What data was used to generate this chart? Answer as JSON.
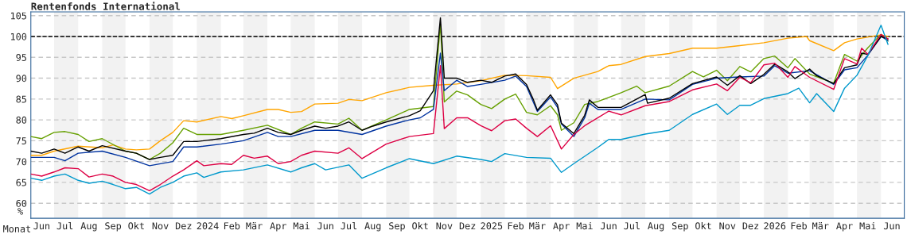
{
  "chart_data": {
    "type": "line",
    "title": "Rentenfonds International",
    "xlabel": "Monat",
    "ylabel": "%",
    "xlim": [
      "2023-06-01",
      "2026-07-01"
    ],
    "ylim": [
      56.4,
      105.9
    ],
    "yticks": [
      60,
      65,
      70,
      75,
      80,
      85,
      90,
      95,
      100,
      105
    ],
    "xticks": [
      {
        "value": "2023-06-15",
        "label": "Jun"
      },
      {
        "value": "2023-07-15",
        "label": "Jul"
      },
      {
        "value": "2023-08-15",
        "label": "Aug"
      },
      {
        "value": "2023-09-15",
        "label": "Sep"
      },
      {
        "value": "2023-10-15",
        "label": "Okt"
      },
      {
        "value": "2023-11-15",
        "label": "Nov"
      },
      {
        "value": "2023-12-15",
        "label": "Dez"
      },
      {
        "value": "2024-01-15",
        "label": "2024"
      },
      {
        "value": "2024-02-15",
        "label": "Feb"
      },
      {
        "value": "2024-03-15",
        "label": "Mär"
      },
      {
        "value": "2024-04-15",
        "label": "Apr"
      },
      {
        "value": "2024-05-15",
        "label": "Mai"
      },
      {
        "value": "2024-06-15",
        "label": "Jun"
      },
      {
        "value": "2024-07-15",
        "label": "Jul"
      },
      {
        "value": "2024-08-15",
        "label": "Aug"
      },
      {
        "value": "2024-09-15",
        "label": "Sep"
      },
      {
        "value": "2024-10-15",
        "label": "Okt"
      },
      {
        "value": "2024-11-15",
        "label": "Nov"
      },
      {
        "value": "2024-12-15",
        "label": "Dez"
      },
      {
        "value": "2025-01-15",
        "label": "2025"
      },
      {
        "value": "2025-02-15",
        "label": "Feb"
      },
      {
        "value": "2025-03-15",
        "label": "Mär"
      },
      {
        "value": "2025-04-15",
        "label": "Apr"
      },
      {
        "value": "2025-05-15",
        "label": "Mai"
      },
      {
        "value": "2025-06-15",
        "label": "Jun"
      },
      {
        "value": "2025-07-15",
        "label": "Jul"
      },
      {
        "value": "2025-08-15",
        "label": "Aug"
      },
      {
        "value": "2025-09-15",
        "label": "Sep"
      },
      {
        "value": "2025-10-15",
        "label": "Okt"
      },
      {
        "value": "2025-11-15",
        "label": "Nov"
      },
      {
        "value": "2025-12-15",
        "label": "Dez"
      },
      {
        "value": "2026-01-15",
        "label": "2026"
      },
      {
        "value": "2026-02-15",
        "label": "Feb"
      },
      {
        "value": "2026-03-15",
        "label": "Mär"
      },
      {
        "value": "2026-04-15",
        "label": "Apr"
      },
      {
        "value": "2026-05-15",
        "label": "Mai"
      },
      {
        "value": "2026-06-15",
        "label": "Jun"
      }
    ],
    "grid": "y",
    "legend": false,
    "marker": "none",
    "line_style": "solid",
    "ref_lines": [
      {
        "axis": "y",
        "value": 100,
        "color": "#000000",
        "line_style": "dashed"
      }
    ],
    "bands": [
      {
        "axis": "x",
        "from": "2023-07-01",
        "to": "2023-08-01",
        "color": "#f2f2f2"
      },
      {
        "axis": "x",
        "from": "2023-09-01",
        "to": "2023-10-01",
        "color": "#f2f2f2"
      },
      {
        "axis": "x",
        "from": "2023-11-01",
        "to": "2023-12-01",
        "color": "#f2f2f2"
      },
      {
        "axis": "x",
        "from": "2024-01-01",
        "to": "2024-02-01",
        "color": "#f2f2f2"
      },
      {
        "axis": "x",
        "from": "2024-03-01",
        "to": "2024-04-01",
        "color": "#f2f2f2"
      },
      {
        "axis": "x",
        "from": "2024-05-01",
        "to": "2024-06-01",
        "color": "#f2f2f2"
      },
      {
        "axis": "x",
        "from": "2024-07-01",
        "to": "2024-08-01",
        "color": "#f2f2f2"
      },
      {
        "axis": "x",
        "from": "2024-09-01",
        "to": "2024-10-01",
        "color": "#f2f2f2"
      },
      {
        "axis": "x",
        "from": "2024-11-01",
        "to": "2024-12-01",
        "color": "#f2f2f2"
      },
      {
        "axis": "x",
        "from": "2025-01-01",
        "to": "2025-02-01",
        "color": "#f2f2f2"
      },
      {
        "axis": "x",
        "from": "2025-03-01",
        "to": "2025-04-01",
        "color": "#f2f2f2"
      },
      {
        "axis": "x",
        "from": "2025-05-01",
        "to": "2025-06-01",
        "color": "#f2f2f2"
      },
      {
        "axis": "x",
        "from": "2025-07-01",
        "to": "2025-08-01",
        "color": "#f2f2f2"
      },
      {
        "axis": "x",
        "from": "2025-09-01",
        "to": "2025-10-01",
        "color": "#f2f2f2"
      },
      {
        "axis": "x",
        "from": "2025-11-01",
        "to": "2025-12-01",
        "color": "#f2f2f2"
      },
      {
        "axis": "x",
        "from": "2026-01-01",
        "to": "2026-02-01",
        "color": "#f2f2f2"
      },
      {
        "axis": "x",
        "from": "2026-03-01",
        "to": "2026-04-01",
        "color": "#f2f2f2"
      },
      {
        "axis": "x",
        "from": "2026-05-01",
        "to": "2026-06-01",
        "color": "#f2f2f2"
      }
    ],
    "series": [
      {
        "color": "#ffa500",
        "x": [
          "2023-06-01",
          "2023-06-15",
          "2023-07-01",
          "2023-08-01",
          "2023-09-01",
          "2023-09-15",
          "2023-10-01",
          "2023-10-15",
          "2023-11-01",
          "2023-11-15",
          "2023-12-01",
          "2023-12-15",
          "2024-01-01",
          "2024-02-01",
          "2024-02-15",
          "2024-03-01",
          "2024-04-01",
          "2024-04-15",
          "2024-05-01",
          "2024-05-15",
          "2024-06-01",
          "2024-07-01",
          "2024-07-15",
          "2024-08-01",
          "2024-09-01",
          "2024-10-01",
          "2024-11-01",
          "2024-12-01",
          "2025-01-01",
          "2025-02-01",
          "2025-03-01",
          "2025-04-01",
          "2025-04-10",
          "2025-05-01",
          "2025-06-01",
          "2025-06-15",
          "2025-07-01",
          "2025-08-01",
          "2025-09-01",
          "2025-10-01",
          "2025-11-01",
          "2025-12-01",
          "2026-01-01",
          "2026-02-01",
          "2026-02-25",
          "2026-03-01",
          "2026-04-01",
          "2026-04-15",
          "2026-05-01",
          "2026-06-01",
          "2026-06-10"
        ],
        "values": [
          71.5,
          71.5,
          72.5,
          73.7,
          73.3,
          74,
          73,
          72.8,
          73,
          75,
          77,
          79.8,
          79.5,
          80.8,
          80.3,
          81,
          82.5,
          82.5,
          81.8,
          82,
          83.8,
          84,
          84.9,
          84.6,
          86.5,
          87.8,
          88.3,
          88.6,
          89.4,
          90.7,
          90.6,
          90.2,
          87.5,
          90,
          91.6,
          93,
          93.3,
          95.2,
          95.9,
          97.2,
          97.2,
          97.8,
          98.5,
          99.6,
          100,
          99,
          96.6,
          98.5,
          99.4,
          100.4,
          100
        ]
      },
      {
        "color": "#66a000",
        "x": [
          "2023-06-01",
          "2023-06-15",
          "2023-07-01",
          "2023-07-15",
          "2023-08-01",
          "2023-08-15",
          "2023-09-01",
          "2023-10-01",
          "2023-10-15",
          "2023-11-01",
          "2023-11-15",
          "2023-12-01",
          "2023-12-15",
          "2024-01-01",
          "2024-02-01",
          "2024-03-01",
          "2024-04-01",
          "2024-05-01",
          "2024-05-15",
          "2024-06-01",
          "2024-07-01",
          "2024-07-15",
          "2024-08-01",
          "2024-09-01",
          "2024-10-01",
          "2024-11-01",
          "2024-11-10",
          "2024-11-15",
          "2024-12-01",
          "2024-12-15",
          "2025-01-01",
          "2025-01-15",
          "2025-02-01",
          "2025-02-15",
          "2025-03-01",
          "2025-03-15",
          "2025-04-01",
          "2025-04-10",
          "2025-04-15",
          "2025-05-01",
          "2025-05-15",
          "2025-06-01",
          "2025-07-01",
          "2025-07-21",
          "2025-08-01",
          "2025-09-01",
          "2025-10-01",
          "2025-10-15",
          "2025-11-01",
          "2025-11-15",
          "2025-12-01",
          "2025-12-15",
          "2026-01-01",
          "2026-01-15",
          "2026-02-01",
          "2026-02-10",
          "2026-03-01",
          "2026-04-01",
          "2026-04-15",
          "2026-05-01",
          "2026-05-15",
          "2026-06-01",
          "2026-06-10"
        ],
        "values": [
          76,
          75.5,
          77,
          77.2,
          76.5,
          74.8,
          75.5,
          72.5,
          72,
          70.5,
          72,
          74.5,
          78,
          76.5,
          76.5,
          77.5,
          78.7,
          76.5,
          78,
          79.5,
          79,
          80.4,
          77.5,
          80,
          82.5,
          83.2,
          103,
          84.3,
          86.9,
          86,
          83.7,
          82.7,
          85,
          86.2,
          81.8,
          81.2,
          83.4,
          81.2,
          77.5,
          79.3,
          83.7,
          84.4,
          86.5,
          88.1,
          86.5,
          88.1,
          91.6,
          90.3,
          91.9,
          89.4,
          92.8,
          91.5,
          94.7,
          95.3,
          92.5,
          94.7,
          91,
          88.8,
          95.7,
          94.1,
          97.3,
          100.5,
          98.9
        ]
      },
      {
        "color": "#0033a0",
        "x": [
          "2023-06-01",
          "2023-07-01",
          "2023-07-15",
          "2023-08-01",
          "2023-09-01",
          "2023-10-01",
          "2023-11-01",
          "2023-12-01",
          "2023-12-15",
          "2024-01-01",
          "2024-02-01",
          "2024-03-01",
          "2024-04-01",
          "2024-04-15",
          "2024-05-01",
          "2024-06-01",
          "2024-07-01",
          "2024-08-01",
          "2024-09-01",
          "2024-10-01",
          "2024-10-15",
          "2024-11-01",
          "2024-11-10",
          "2024-11-15",
          "2024-12-01",
          "2024-12-15",
          "2025-01-01",
          "2025-02-01",
          "2025-02-15",
          "2025-03-01",
          "2025-03-15",
          "2025-04-01",
          "2025-04-10",
          "2025-04-15",
          "2025-05-01",
          "2025-05-15",
          "2025-05-21",
          "2025-06-01",
          "2025-07-01",
          "2025-08-01",
          "2025-09-01",
          "2025-10-01",
          "2025-11-01",
          "2025-12-01",
          "2026-01-01",
          "2026-01-15",
          "2026-02-01",
          "2026-03-01",
          "2026-04-01",
          "2026-04-15",
          "2026-05-01",
          "2026-05-15",
          "2026-06-01",
          "2026-06-10"
        ],
        "values": [
          71,
          71,
          70.2,
          72,
          72.5,
          71,
          69,
          70,
          73.5,
          73.5,
          74.2,
          75,
          77,
          76,
          76,
          77.5,
          77.5,
          76.5,
          78.5,
          80,
          80.5,
          82.5,
          96,
          87,
          89.5,
          88,
          88.5,
          89.5,
          90.5,
          88,
          82,
          85.5,
          83,
          79,
          76,
          80.5,
          84,
          82.5,
          82.5,
          85,
          84.8,
          88.5,
          90,
          90.3,
          90.5,
          93,
          91.2,
          91.8,
          88.5,
          92,
          92.5,
          95.5,
          100,
          99
        ]
      },
      {
        "color": "#000000",
        "x": [
          "2023-06-01",
          "2023-06-15",
          "2023-07-01",
          "2023-07-15",
          "2023-08-01",
          "2023-08-15",
          "2023-09-01",
          "2023-10-01",
          "2023-10-15",
          "2023-11-01",
          "2023-11-15",
          "2023-12-01",
          "2023-12-15",
          "2024-01-01",
          "2024-02-01",
          "2024-03-01",
          "2024-03-15",
          "2024-04-01",
          "2024-04-15",
          "2024-05-01",
          "2024-05-15",
          "2024-06-01",
          "2024-06-15",
          "2024-07-01",
          "2024-07-15",
          "2024-08-01",
          "2024-08-15",
          "2024-09-01",
          "2024-10-01",
          "2024-10-15",
          "2024-11-01",
          "2024-11-10",
          "2024-11-15",
          "2024-12-01",
          "2024-12-15",
          "2025-01-01",
          "2025-01-15",
          "2025-02-01",
          "2025-02-15",
          "2025-03-01",
          "2025-03-10",
          "2025-03-15",
          "2025-04-01",
          "2025-04-10",
          "2025-04-15",
          "2025-05-01",
          "2025-05-15",
          "2025-05-21",
          "2025-06-01",
          "2025-06-15",
          "2025-07-01",
          "2025-08-01",
          "2025-08-04",
          "2025-09-01",
          "2025-10-01",
          "2025-11-01",
          "2025-11-15",
          "2025-12-01",
          "2025-12-15",
          "2026-01-01",
          "2026-01-15",
          "2026-02-01",
          "2026-02-10",
          "2026-03-01",
          "2026-03-10",
          "2026-04-01",
          "2026-04-15",
          "2026-05-01",
          "2026-05-07",
          "2026-05-15",
          "2026-06-01",
          "2026-06-10"
        ],
        "values": [
          72.5,
          72,
          73,
          72,
          73.5,
          72.5,
          73.8,
          72.5,
          72,
          70.5,
          71,
          71.5,
          74.8,
          74.8,
          75.5,
          76.5,
          76.8,
          78,
          77,
          76.5,
          77.5,
          78.5,
          78,
          78.5,
          79.5,
          77.5,
          78.5,
          79.5,
          81,
          82.2,
          87,
          104.5,
          90,
          90,
          89,
          89.5,
          89,
          90.5,
          91,
          88.5,
          84.8,
          82.3,
          86,
          83.6,
          79.2,
          76.7,
          81.1,
          84.8,
          83,
          83,
          83,
          86.1,
          84,
          85.2,
          88.7,
          90.3,
          88.3,
          90.6,
          88.7,
          90.9,
          93.4,
          91.5,
          89.9,
          92.2,
          90.6,
          88.7,
          92.5,
          93.2,
          96,
          95.7,
          100,
          99.4
        ]
      },
      {
        "color": "#dd0044",
        "x": [
          "2023-06-01",
          "2023-06-15",
          "2023-07-01",
          "2023-07-15",
          "2023-08-01",
          "2023-08-15",
          "2023-09-01",
          "2023-09-15",
          "2023-10-01",
          "2023-10-15",
          "2023-11-01",
          "2023-11-15",
          "2023-12-01",
          "2023-12-15",
          "2024-01-01",
          "2024-01-10",
          "2024-02-01",
          "2024-02-15",
          "2024-03-01",
          "2024-03-15",
          "2024-04-01",
          "2024-04-15",
          "2024-05-01",
          "2024-05-15",
          "2024-06-01",
          "2024-07-01",
          "2024-07-15",
          "2024-08-01",
          "2024-09-01",
          "2024-10-01",
          "2024-11-01",
          "2024-11-10",
          "2024-11-15",
          "2024-12-01",
          "2024-12-15",
          "2025-01-01",
          "2025-01-15",
          "2025-02-01",
          "2025-02-15",
          "2025-03-01",
          "2025-03-15",
          "2025-04-01",
          "2025-04-15",
          "2025-05-01",
          "2025-05-15",
          "2025-06-01",
          "2025-06-15",
          "2025-07-01",
          "2025-08-01",
          "2025-09-01",
          "2025-10-01",
          "2025-11-01",
          "2025-11-15",
          "2025-12-01",
          "2025-12-15",
          "2026-01-01",
          "2026-01-15",
          "2026-02-01",
          "2026-02-10",
          "2026-03-01",
          "2026-04-01",
          "2026-04-15",
          "2026-05-01",
          "2026-05-07",
          "2026-05-15",
          "2026-06-01",
          "2026-06-10"
        ],
        "values": [
          67,
          66.5,
          67.5,
          68.5,
          68.3,
          66.3,
          67,
          66.5,
          65,
          64.5,
          63,
          64.5,
          66.5,
          68,
          70.2,
          69,
          69.5,
          69.3,
          71.5,
          70.8,
          71.3,
          69.5,
          70,
          71.5,
          72.5,
          72,
          73.3,
          70.7,
          74.2,
          76,
          76.7,
          93,
          77.9,
          80.5,
          80.5,
          78.6,
          77.4,
          79.8,
          80.2,
          78,
          76,
          78.6,
          73,
          76.5,
          78.6,
          80.5,
          82.1,
          81.2,
          83.4,
          84.4,
          87.2,
          88.6,
          87,
          90.2,
          88.9,
          93.2,
          93.6,
          90.2,
          92.8,
          90.2,
          87.3,
          94.7,
          93.4,
          97.2,
          95.7,
          100.5,
          99.4
        ]
      },
      {
        "color": "#0099cc",
        "x": [
          "2023-06-01",
          "2023-06-15",
          "2023-07-01",
          "2023-07-15",
          "2023-08-01",
          "2023-08-15",
          "2023-09-01",
          "2023-09-15",
          "2023-10-01",
          "2023-10-15",
          "2023-11-01",
          "2023-11-15",
          "2023-12-01",
          "2023-12-15",
          "2024-01-01",
          "2024-01-10",
          "2024-02-01",
          "2024-03-01",
          "2024-04-01",
          "2024-05-01",
          "2024-05-15",
          "2024-06-01",
          "2024-06-15",
          "2024-07-15",
          "2024-08-01",
          "2024-09-01",
          "2024-10-01",
          "2024-11-01",
          "2024-12-01",
          "2025-01-01",
          "2025-01-15",
          "2025-02-01",
          "2025-03-01",
          "2025-04-01",
          "2025-04-15",
          "2025-05-01",
          "2025-06-01",
          "2025-06-15",
          "2025-07-01",
          "2025-08-01",
          "2025-09-01",
          "2025-10-01",
          "2025-11-01",
          "2025-11-15",
          "2025-12-01",
          "2025-12-15",
          "2026-01-01",
          "2026-02-01",
          "2026-02-15",
          "2026-03-01",
          "2026-03-10",
          "2026-04-01",
          "2026-04-15",
          "2026-05-01",
          "2026-05-15",
          "2026-06-01",
          "2026-06-10"
        ],
        "values": [
          66,
          65.5,
          66.5,
          67,
          65.5,
          64.8,
          65.3,
          64.5,
          63.5,
          63.8,
          62.2,
          63.8,
          65,
          66.5,
          67.3,
          66.2,
          67.5,
          68,
          69.2,
          67.5,
          68.5,
          69.5,
          68,
          69.2,
          66,
          68.5,
          70.7,
          69.5,
          71.3,
          70.5,
          70,
          71.9,
          71,
          70.8,
          67.4,
          69.5,
          73.4,
          75.3,
          75.3,
          76.6,
          77.5,
          81.3,
          83.8,
          81.3,
          83.5,
          83.5,
          85.1,
          86.3,
          87.6,
          84.1,
          86.3,
          82,
          87.6,
          90.7,
          95.4,
          102.7,
          98.1
        ]
      }
    ]
  }
}
